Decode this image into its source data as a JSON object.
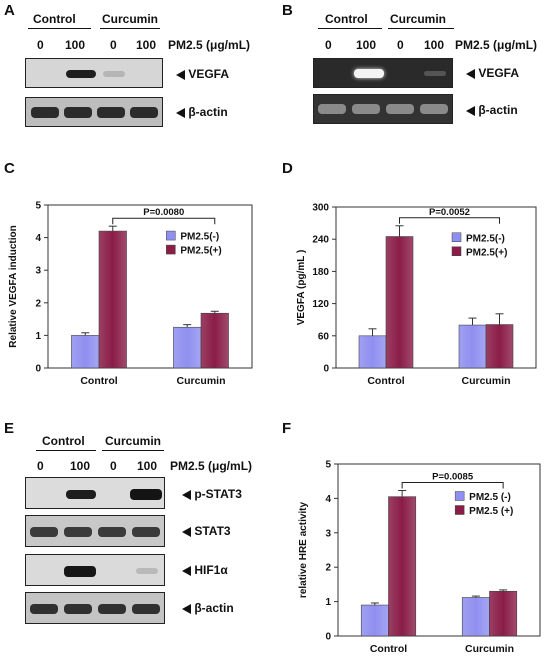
{
  "panels": {
    "A": {
      "label": "A",
      "groups": [
        "Control",
        "Curcumin"
      ],
      "doses": [
        "0",
        "100",
        "0",
        "100"
      ],
      "treatment": "PM2.5 (μg/mL)",
      "bands": [
        "VEGFA",
        "β-actin"
      ]
    },
    "B": {
      "label": "B",
      "groups": [
        "Control",
        "Curcumin"
      ],
      "doses": [
        "0",
        "100",
        "0",
        "100"
      ],
      "treatment": "PM2.5 (μg/mL)",
      "bands": [
        "VEGFA",
        "β-actin"
      ]
    },
    "C": {
      "label": "C"
    },
    "D": {
      "label": "D"
    },
    "E": {
      "label": "E",
      "groups": [
        "Control",
        "Curcumin"
      ],
      "doses": [
        "0",
        "100",
        "0",
        "100"
      ],
      "treatment": "PM2.5 (μg/mL)",
      "bands": [
        "p-STAT3",
        "STAT3",
        "HIF1α",
        "β-actin"
      ]
    },
    "F": {
      "label": "F"
    }
  },
  "colors": {
    "neg": "#8f8ff0",
    "pos": "#8a1d48",
    "grid": "#888888"
  },
  "chart_data": [
    {
      "id": "C",
      "type": "bar",
      "categories": [
        "Control",
        "Curcumin"
      ],
      "series": [
        {
          "name": "PM2.5(-)",
          "values": [
            1.0,
            1.25
          ],
          "errors": [
            0.08,
            0.08
          ]
        },
        {
          "name": "PM2.5(+)",
          "values": [
            4.2,
            1.68
          ],
          "errors": [
            0.15,
            0.06
          ]
        }
      ],
      "ylabel": "Relative VEGFA induction",
      "ylim": [
        0,
        5
      ],
      "yticks": [
        "0",
        "1",
        "2",
        "3",
        "4",
        "5"
      ],
      "annotation": "P=0.0080",
      "legend": "right"
    },
    {
      "id": "D",
      "type": "bar",
      "categories": [
        "Control",
        "Curcumin"
      ],
      "series": [
        {
          "name": "PM2.5(-)",
          "values": [
            60,
            80
          ],
          "errors": [
            13,
            13
          ]
        },
        {
          "name": "PM2.5(+)",
          "values": [
            245,
            81
          ],
          "errors": [
            20,
            20
          ]
        }
      ],
      "ylabel": "VEGFA (pg/mL )",
      "ylim": [
        0,
        300
      ],
      "yticks": [
        "0",
        "60",
        "120",
        "180",
        "240",
        "300"
      ],
      "annotation": "P=0.0052",
      "legend": "right"
    },
    {
      "id": "F",
      "type": "bar",
      "categories": [
        "Control",
        "Curcumin"
      ],
      "series": [
        {
          "name": "PM2.5 (-)",
          "values": [
            0.9,
            1.12
          ],
          "errors": [
            0.06,
            0.04
          ]
        },
        {
          "name": "PM2.5 (+)",
          "values": [
            4.05,
            1.3
          ],
          "errors": [
            0.18,
            0.04
          ]
        }
      ],
      "ylabel": "relative HRE activity",
      "ylim": [
        0,
        5
      ],
      "yticks": [
        "0",
        "1",
        "2",
        "3",
        "4",
        "5"
      ],
      "annotation": "P=0.0085",
      "legend": "right"
    }
  ]
}
